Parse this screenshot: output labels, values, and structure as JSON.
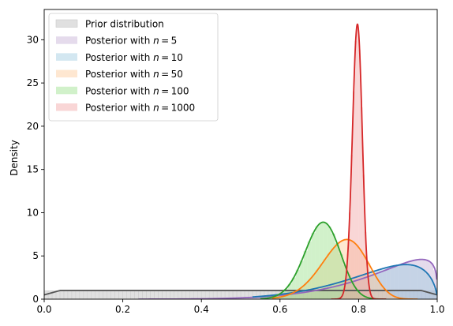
{
  "chart_data": {
    "type": "histogram-kde",
    "title": "",
    "xlabel": "",
    "ylabel": "Density",
    "xlim": [
      0,
      1
    ],
    "ylim": [
      0,
      33.5
    ],
    "x_ticks": [
      0.0,
      0.2,
      0.4,
      0.6,
      0.8,
      1.0
    ],
    "x_tick_labels": [
      "0.0",
      "0.2",
      "0.4",
      "0.6",
      "0.8",
      "1.0"
    ],
    "y_ticks": [
      0,
      5,
      10,
      15,
      20,
      25,
      30
    ],
    "y_tick_labels": [
      "0",
      "5",
      "10",
      "15",
      "20",
      "25",
      "30"
    ],
    "grid": false,
    "legend_position": "top-left",
    "series": [
      {
        "name": "Prior distribution",
        "name_prefix": "Prior distribution",
        "name_n": "",
        "kind": "uniform",
        "low": 0,
        "high": 1,
        "peak_density": 1.0,
        "color": "#555555",
        "fill": "#bbbbbb"
      },
      {
        "name": "Posterior with n = 5",
        "name_prefix": "Posterior with ",
        "name_n": "5",
        "kind": "beta",
        "mode": 0.96,
        "peak_density": 4.6,
        "range": [
          0.26,
          1.0
        ],
        "color": "#9467bd",
        "fill": "#c5b0d5"
      },
      {
        "name": "Posterior with n = 10",
        "name_prefix": "Posterior with ",
        "name_n": "10",
        "kind": "beta",
        "mode": 0.92,
        "peak_density": 4.0,
        "range": [
          0.55,
          1.0
        ],
        "color": "#1f77b4",
        "fill": "#9ecae1"
      },
      {
        "name": "Posterior with n = 50",
        "name_prefix": "Posterior with ",
        "name_n": "50",
        "kind": "beta",
        "mode": 0.77,
        "peak_density": 6.9,
        "range": [
          0.6,
          0.93
        ],
        "color": "#ff7f0e",
        "fill": "#fdc999"
      },
      {
        "name": "Posterior with n = 100",
        "name_prefix": "Posterior with ",
        "name_n": "100",
        "kind": "beta",
        "mode": 0.71,
        "peak_density": 8.9,
        "range": [
          0.57,
          0.85
        ],
        "color": "#2ca02c",
        "fill": "#98df8a"
      },
      {
        "name": "Posterior with n = 1000",
        "name_prefix": "Posterior with ",
        "name_n": "1000",
        "kind": "beta",
        "mode": 0.797,
        "peak_density": 31.8,
        "range": [
          0.75,
          0.85
        ],
        "color": "#d62728",
        "fill": "#f2a3a3"
      }
    ]
  }
}
